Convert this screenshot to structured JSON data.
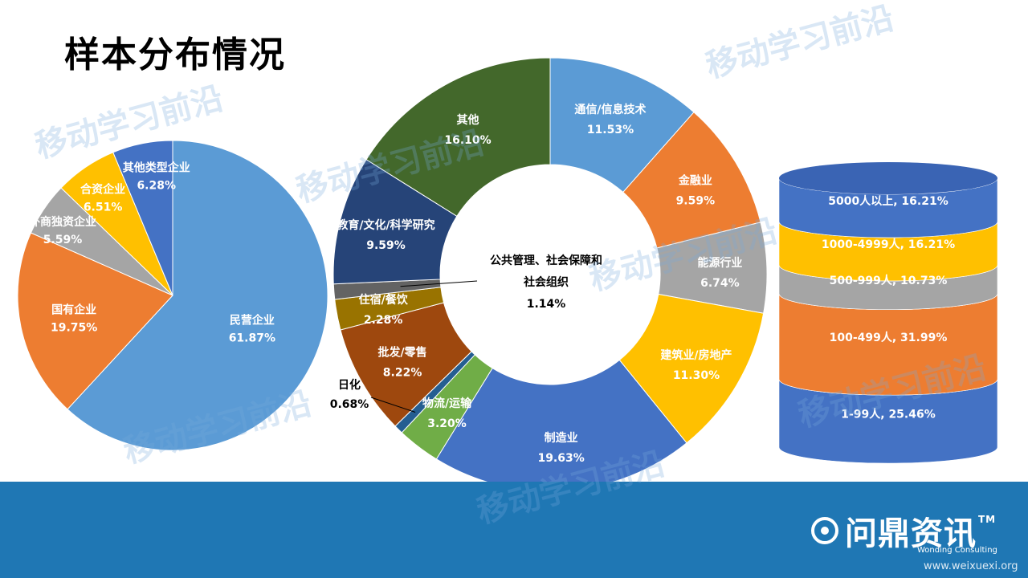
{
  "page": {
    "title": "样本分布情况"
  },
  "chart_data": [
    {
      "type": "pie",
      "categories": [
        "民营企业",
        "国有企业",
        "外商独资企业",
        "合资企业",
        "其他类型企业"
      ],
      "values": [
        61.87,
        19.75,
        5.59,
        6.51,
        6.28
      ],
      "labels": [
        "61.87%",
        "19.75%",
        "5.59%",
        "6.51%",
        "6.28%"
      ],
      "colors": [
        "#5b9bd5",
        "#ed7d31",
        "#a5a5a5",
        "#ffc000",
        "#4472c4"
      ]
    },
    {
      "type": "pie",
      "style": "donut",
      "categories": [
        "通信/信息技术",
        "金融业",
        "能源行业",
        "建筑业/房地产",
        "制造业",
        "物流/运输",
        "日化",
        "批发/零售",
        "住宿/餐饮",
        "公共管理、社会保障和社会组织",
        "教育/文化/科学研究",
        "其他"
      ],
      "values": [
        11.53,
        9.59,
        6.74,
        11.3,
        19.63,
        3.2,
        0.68,
        8.22,
        2.28,
        1.14,
        9.59,
        16.1
      ],
      "labels": [
        "11.53%",
        "9.59%",
        "6.74%",
        "11.30%",
        "19.63%",
        "3.20%",
        "0.68%",
        "8.22%",
        "2.28%",
        "1.14%",
        "9.59%",
        "16.10%"
      ],
      "label_lines": [
        "公共管理、社会保障和",
        "社会组织"
      ],
      "colors": [
        "#5b9bd5",
        "#ed7d31",
        "#a5a5a5",
        "#ffc000",
        "#4472c4",
        "#70ad47",
        "#255e91",
        "#9e480e",
        "#997300",
        "#636363",
        "#264478",
        "#43682b"
      ]
    },
    {
      "type": "stacked-cylinder",
      "categories": [
        "1-99人",
        "100-499人",
        "500-999人",
        "1000-4999人",
        "5000人以上"
      ],
      "values": [
        25.46,
        31.99,
        10.73,
        16.21,
        16.21
      ],
      "labels": [
        "1-99人, 25.46%",
        "100-499人, 31.99%",
        "500-999人, 10.73%",
        "1000-4999人, 16.21%",
        "5000人以上, 16.21%"
      ],
      "colors": [
        "#4472c4",
        "#ed7d31",
        "#a5a5a5",
        "#ffc000",
        "#4472c4"
      ]
    }
  ],
  "footer": {
    "brand": "问鼎资讯",
    "tm": "TM",
    "sub": "Wonding Consulting",
    "site": "www.weixuexi.org"
  },
  "watermark": "移动学习前沿"
}
